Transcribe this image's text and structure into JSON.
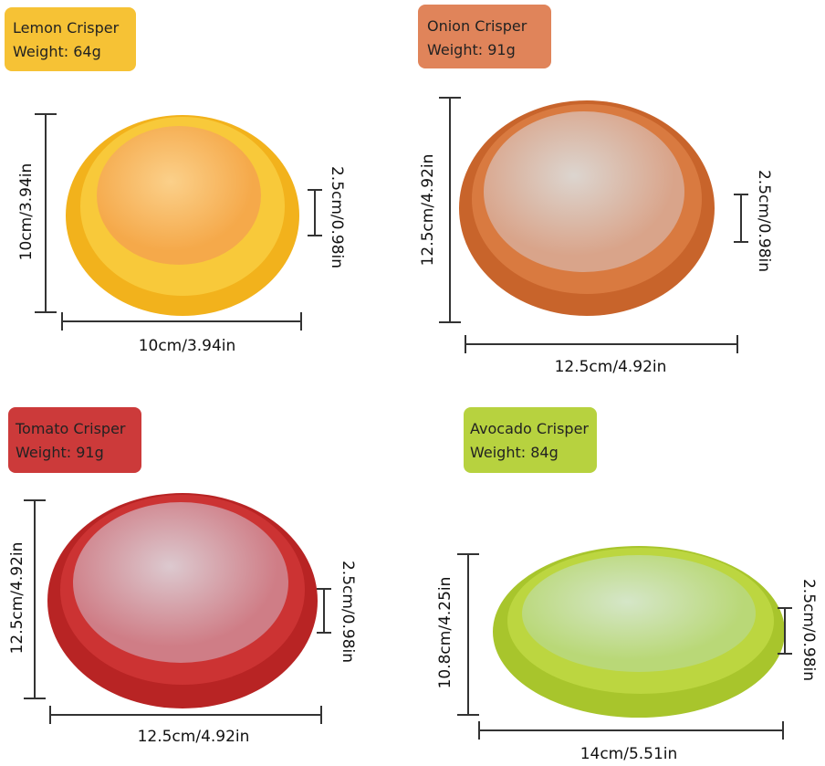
{
  "items": [
    {
      "name": "Lemon Crisper",
      "weight": "Weight: 64g",
      "height": "10cm/3.94in",
      "depth": "2.5cm/0.98in",
      "width": "10cm/3.94in"
    },
    {
      "name": "Onion Crisper",
      "weight": "Weight: 91g",
      "height": "12.5cm/4.92in",
      "depth": "2.5cm/0.98in",
      "width": "12.5cm/4.92in"
    },
    {
      "name": "Tomato Crisper",
      "weight": "Weight: 91g",
      "height": "12.5cm/4.92in",
      "depth": "2.5cm/0.98in",
      "width": "12.5cm/4.92in"
    },
    {
      "name": "Avocado Crisper",
      "weight": "Weight: 84g",
      "height": "10.8cm/4.25in",
      "depth": "2.5cm/0.98in",
      "width": "14cm/5.51in"
    }
  ]
}
